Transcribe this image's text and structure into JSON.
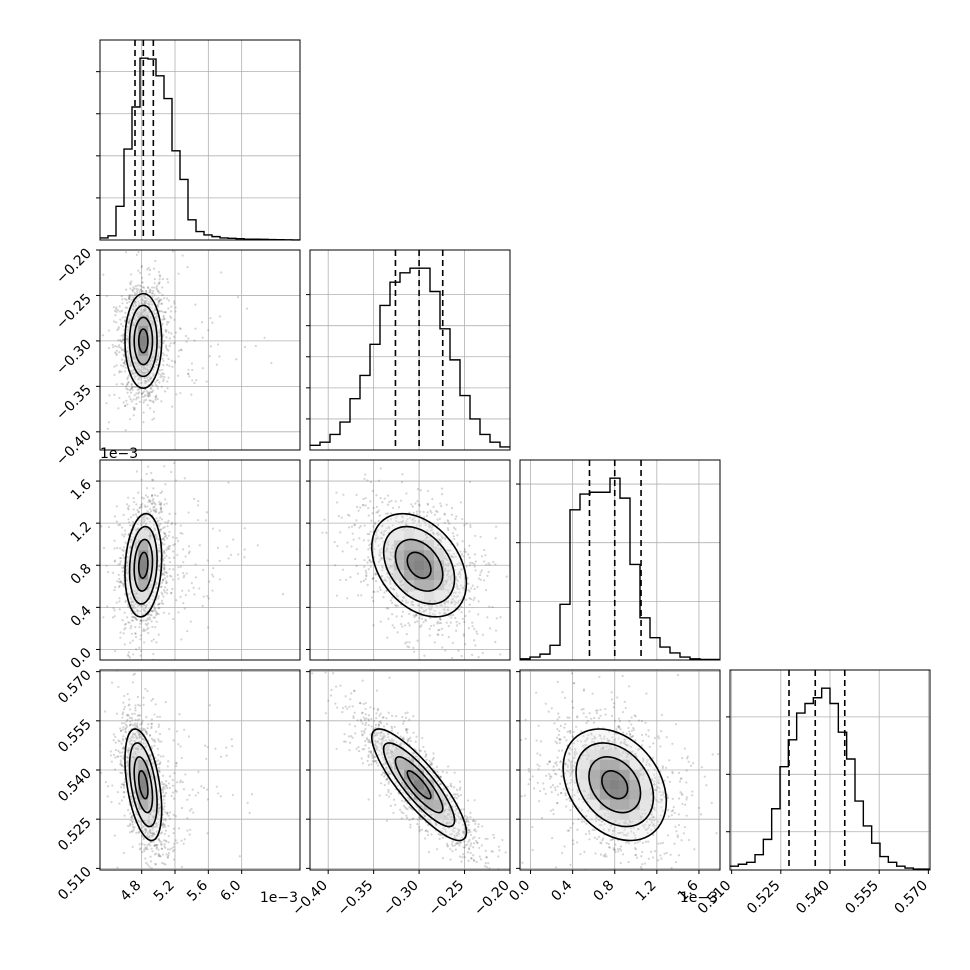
{
  "chart_data": {
    "type": "corner",
    "parameters": [
      {
        "index": 0,
        "range": [
          0.0043,
          0.0067
        ],
        "ticks": [
          0.0048,
          0.0052,
          0.0056,
          0.006
        ],
        "tick_labels": [
          "4.8",
          "5.2",
          "5.6",
          "6.0"
        ],
        "offset_label": "1e−3",
        "quantiles": [
          0.00472,
          0.00482,
          0.00494
        ],
        "hist_max": 0.0216,
        "hist_ticks": [
          0.005,
          0.01,
          0.015,
          0.02
        ],
        "hist": [
          0.00025,
          0.0005,
          0.004,
          0.0108,
          0.0158,
          0.0216,
          0.0215,
          0.0195,
          0.0168,
          0.0106,
          0.0072,
          0.0024,
          0.001,
          0.0006,
          0.0004,
          0.00025,
          0.0002,
          0.00015,
          0.0001,
          0.0001,
          8e-05,
          5e-05,
          3e-05,
          2e-05,
          1e-05
        ]
      },
      {
        "index": 1,
        "range": [
          -0.42,
          -0.2
        ],
        "ticks": [
          -0.4,
          -0.35,
          -0.3,
          -0.25,
          -0.2
        ],
        "tick_labels": [
          "−0.40",
          "−0.35",
          "−0.30",
          "−0.25",
          "−0.20"
        ],
        "offset_label": "",
        "quantiles": [
          -0.326,
          -0.3,
          -0.274
        ],
        "hist_max": 0.0117,
        "hist_ticks": [
          0.002,
          0.004,
          0.006,
          0.008,
          0.01
        ],
        "hist": [
          0.0003,
          0.0005,
          0.001,
          0.0018,
          0.0033,
          0.0048,
          0.0068,
          0.0093,
          0.0108,
          0.0114,
          0.0117,
          0.0117,
          0.0102,
          0.0078,
          0.0058,
          0.0035,
          0.002,
          0.001,
          0.0005,
          0.0002
        ]
      },
      {
        "index": 2,
        "range": [
          -0.0001,
          0.0018
        ],
        "ticks": [
          0.0,
          0.0004,
          0.0008,
          0.0012,
          0.0016
        ],
        "tick_labels": [
          "0.0",
          "0.4",
          "0.8",
          "1.2",
          "1.6"
        ],
        "offset_label": "1e−3",
        "quantiles": [
          0.00056,
          0.0008,
          0.00105
        ],
        "hist_max": 0.031,
        "hist_ticks": [
          0.01,
          0.02,
          0.03
        ],
        "hist": [
          0.0002,
          0.0005,
          0.001,
          0.0025,
          0.0095,
          0.0256,
          0.0283,
          0.0286,
          0.0286,
          0.031,
          0.0276,
          0.0163,
          0.0072,
          0.0038,
          0.0022,
          0.0012,
          0.0005,
          0.0002,
          0.0001,
          0.0001
        ]
      },
      {
        "index": 3,
        "range": [
          0.5095,
          0.5705
        ],
        "ticks": [
          0.51,
          0.525,
          0.54,
          0.555,
          0.57
        ],
        "tick_labels": [
          "0.510",
          "0.525",
          "0.540",
          "0.555",
          "0.570"
        ],
        "offset_label": "",
        "quantiles": [
          0.5275,
          0.5355,
          0.5445
        ],
        "hist_max": 0.0095,
        "hist_ticks": [
          0.002,
          0.005,
          0.008
        ],
        "hist": [
          0.0002,
          0.0003,
          0.0004,
          0.0008,
          0.0016,
          0.0032,
          0.0054,
          0.0068,
          0.0082,
          0.0087,
          0.009,
          0.0095,
          0.0087,
          0.0072,
          0.0058,
          0.0036,
          0.0023,
          0.0014,
          0.0007,
          0.0004,
          0.0002,
          0.0001,
          5e-05,
          5e-05
        ]
      }
    ],
    "correlations": {
      "0-1": 0.0,
      "0-2": 0.15,
      "0-3": -0.45,
      "1-2": -0.35,
      "1-3": -0.85,
      "2-3": -0.3
    },
    "contour_levels_sigma": [
      0.5,
      1.0,
      1.5,
      2.0
    ],
    "grid": true
  }
}
